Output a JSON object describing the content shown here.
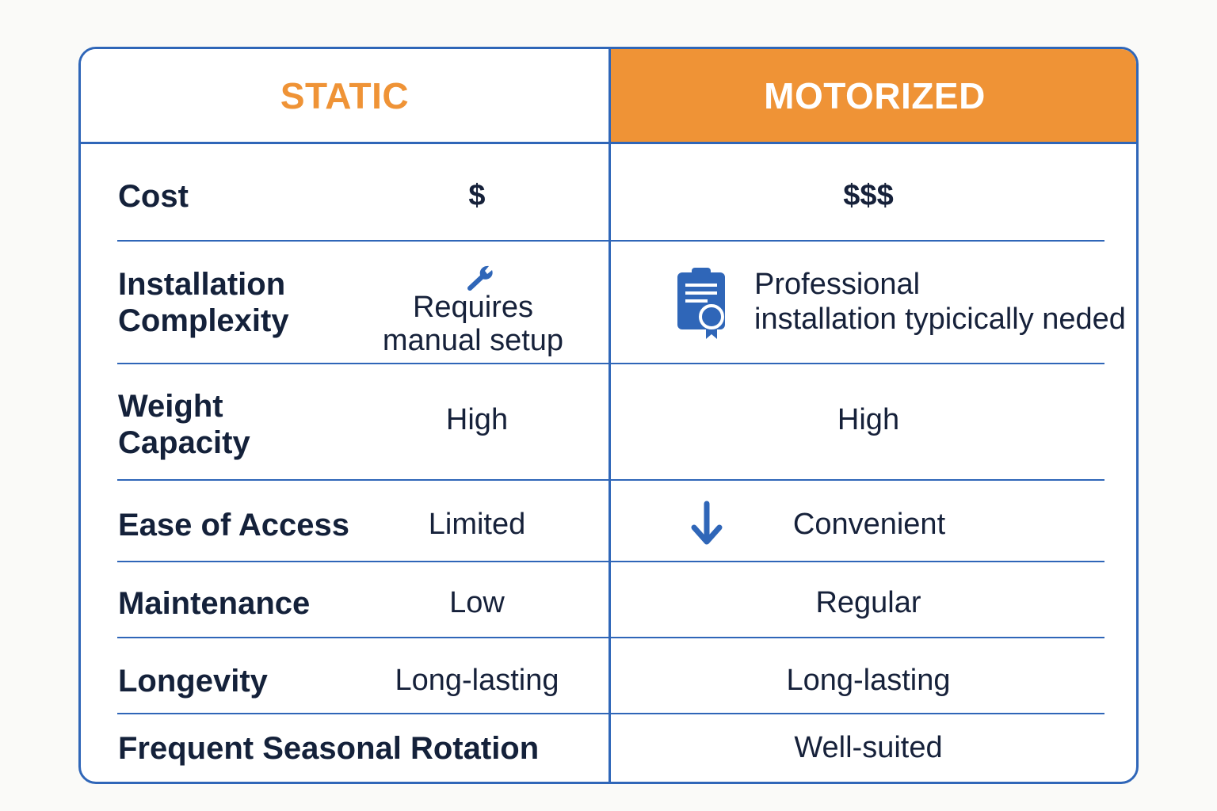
{
  "headers": {
    "static": "STATIC",
    "motorized": "MOTORIZED"
  },
  "rows": [
    {
      "label": "Cost",
      "static": "$",
      "motorized": "$$$"
    },
    {
      "label_line1": "Installation",
      "label_line2": "Complexity",
      "static_line1": "Requires",
      "static_line2": "manual setup",
      "static_icon": "wrench-icon",
      "motorized_line1": "Professional",
      "motorized_line2": "installation typicically neded",
      "motorized_icon": "certificate-icon"
    },
    {
      "label_line1": "Weight",
      "label_line2": "Capacity",
      "static": "High",
      "motorized": "High"
    },
    {
      "label": "Ease of Access",
      "static": "Limited",
      "motorized": "Convenient",
      "motorized_icon": "down-arrow-icon"
    },
    {
      "label": "Maintenance",
      "static": "Low",
      "motorized": "Regular"
    },
    {
      "label": "Longevity",
      "static": "Long-lasting",
      "motorized": "Long-lasting"
    },
    {
      "label": "Frequent Seasonal Rotation",
      "motorized": "Well-suited"
    }
  ],
  "colors": {
    "accent": "#ef9336",
    "border": "#2f66b8",
    "text": "#14213a"
  }
}
